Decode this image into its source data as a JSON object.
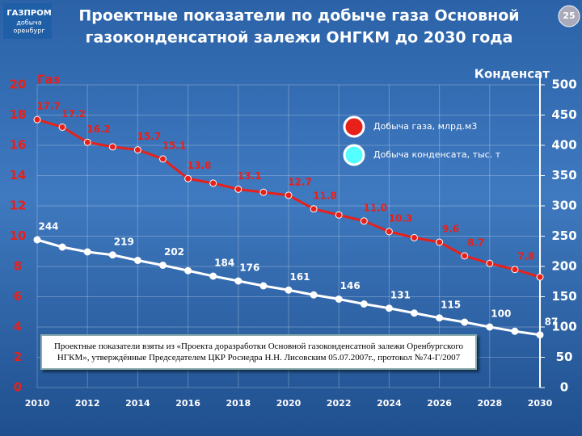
{
  "slide": {
    "logo": [
      "ГАЗПРОМ",
      "добыча",
      "оренбург"
    ],
    "page_number": "25",
    "note": "Проектные показатели взяты из «Проекта доразработки Основной газоконденсатной залежи Оренбургского НГКМ», утверждённые Председателем ЦКР Роснедра Н.Н. Лисовским 05.07.2007г., протокол №74-Г/2007"
  },
  "chart_data": {
    "type": "line",
    "title": [
      "Проектные показатели по добыче газа Основной",
      "газоконденсатной залежи ОНГКМ до 2030 года"
    ],
    "y_label": "Газ",
    "y2_label": "Конденсат",
    "x": [
      2010,
      2011,
      2012,
      2013,
      2014,
      2015,
      2016,
      2017,
      2018,
      2019,
      2020,
      2021,
      2022,
      2023,
      2024,
      2025,
      2026,
      2027,
      2028,
      2029,
      2030
    ],
    "xlim": [
      2010,
      2030
    ],
    "xticks": [
      2010,
      2012,
      2014,
      2016,
      2018,
      2020,
      2022,
      2024,
      2026,
      2028,
      2030
    ],
    "ylim": [
      0,
      20
    ],
    "yticks": [
      0,
      2,
      4,
      6,
      8,
      10,
      12,
      14,
      16,
      18,
      20
    ],
    "y2lim": [
      0,
      500
    ],
    "y2ticks": [
      0,
      50,
      100,
      150,
      200,
      250,
      300,
      350,
      400,
      450,
      500
    ],
    "grid": true,
    "series": [
      {
        "name": "Добыча газа, млрд.м3",
        "color": "#e8201a",
        "axis": "y",
        "values": [
          17.7,
          17.2,
          16.2,
          15.9,
          15.7,
          15.1,
          13.8,
          13.5,
          13.1,
          12.9,
          12.7,
          11.8,
          11.4,
          11.0,
          10.3,
          9.9,
          9.6,
          8.7,
          8.2,
          7.8,
          7.3
        ],
        "value_labels": [
          "17.7",
          "17.2",
          "16.2",
          null,
          "15.7",
          "15.1",
          "13.8",
          null,
          "13.1",
          null,
          "12.7",
          "11.8",
          null,
          "11.0",
          "10.3",
          null,
          "9.6",
          "8.7",
          null,
          "7.8",
          null
        ]
      },
      {
        "name": "Добыча конденсата, тыс. т",
        "color": "#ffffff",
        "axis": "y2",
        "values": [
          244,
          232,
          224,
          219,
          210,
          202,
          193,
          184,
          176,
          168,
          161,
          153,
          146,
          138,
          131,
          123,
          115,
          108,
          100,
          93,
          87
        ],
        "value_labels": [
          "244",
          null,
          null,
          "219",
          null,
          "202",
          null,
          "184",
          "176",
          null,
          "161",
          null,
          "146",
          null,
          "131",
          null,
          "115",
          null,
          "100",
          null,
          "87"
        ]
      }
    ]
  }
}
